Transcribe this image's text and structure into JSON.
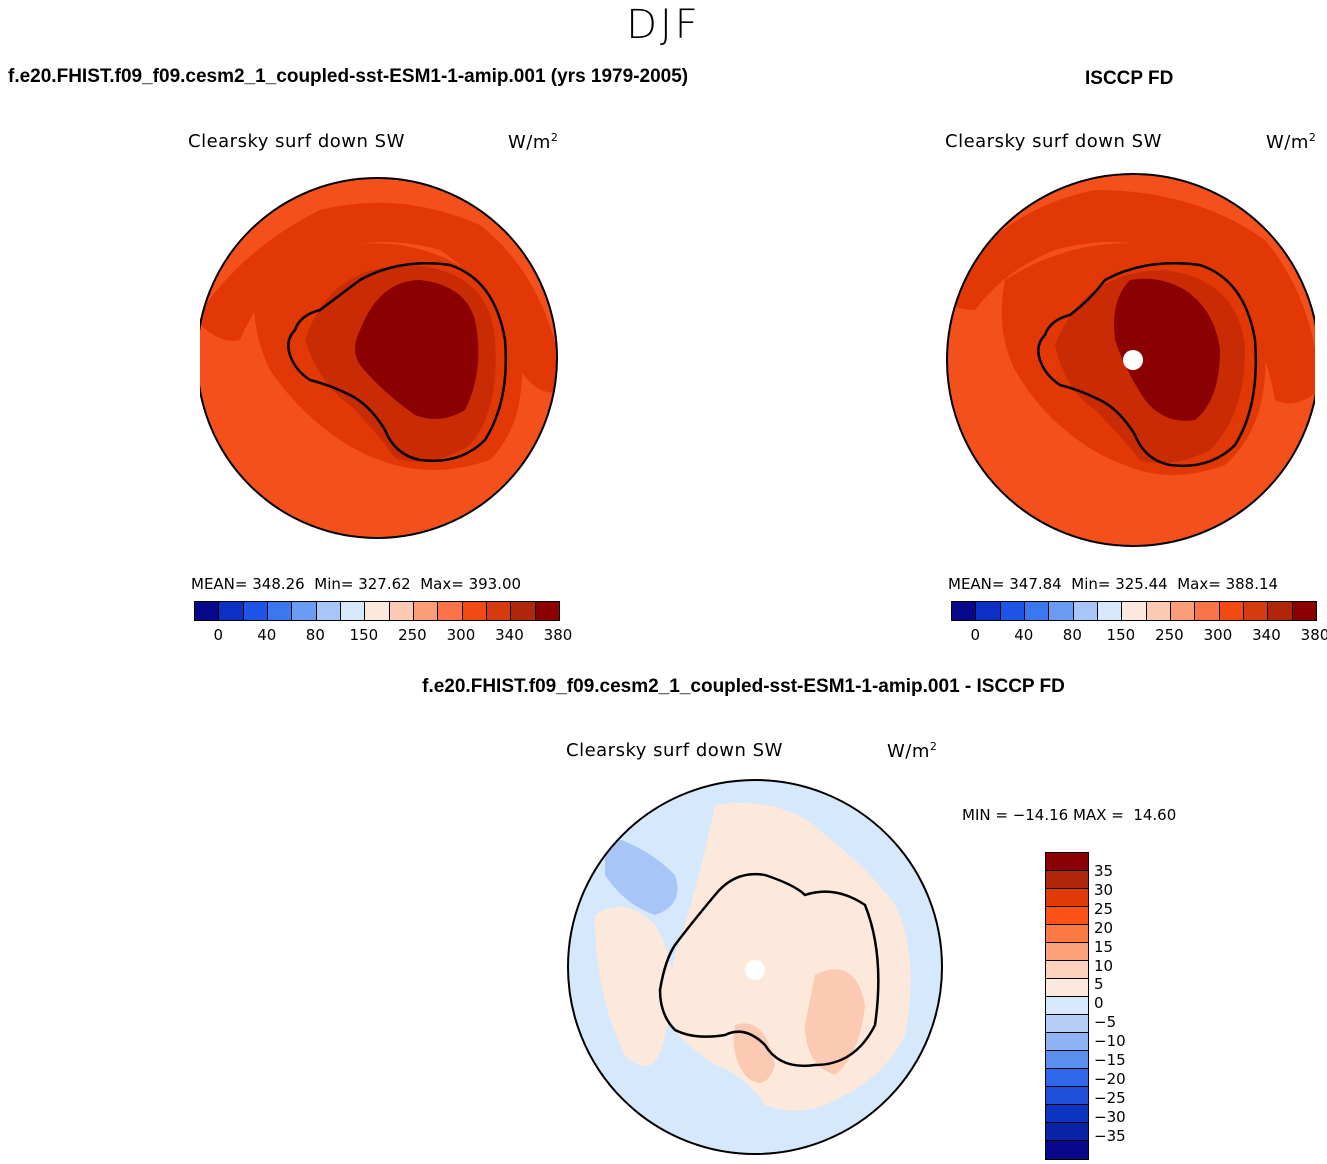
{
  "figure": {
    "season": "DJF",
    "left_panel_title": "f.e20.FHIST.f09_f09.cesm2_1_coupled-sst-ESM1-1-amip.001 (yrs 1979-2005)",
    "right_panel_title": "ISCCP FD",
    "diff_panel_title": "f.e20.FHIST.f09_f09.cesm2_1_coupled-sst-ESM1-1-amip.001 - ISCCP FD"
  },
  "panels": {
    "model": {
      "variable": "Clearsky surf down SW",
      "units": "W/m",
      "units_sup": "2",
      "stats": "MEAN= 348.26  Min= 327.62  Max= 393.00"
    },
    "obs": {
      "variable": "Clearsky surf down SW",
      "units": "W/m",
      "units_sup": "2",
      "stats": "MEAN= 347.84  Min= 325.44  Max= 388.14"
    },
    "diff": {
      "variable": "Clearsky surf down SW",
      "units": "W/m",
      "units_sup": "2",
      "stats": "MIN = −14.16 MAX =  14.60"
    }
  },
  "colors": {
    "main_scale": [
      "#08088a",
      "#0c2fc4",
      "#1d55e8",
      "#3a78f0",
      "#6a9cf5",
      "#a8c5f8",
      "#d6e8fc",
      "#fde9dc",
      "#fccab3",
      "#fb9e78",
      "#f97447",
      "#f14a12",
      "#d53b0c",
      "#b02608",
      "#8b0000"
    ],
    "diff_scale": [
      "#8b0000",
      "#b02608",
      "#e13a06",
      "#fd5318",
      "#fc7a45",
      "#fca27a",
      "#fdd2bc",
      "#fde9dc",
      "#d6e8fc",
      "#b5cdf7",
      "#8fb4f4",
      "#5a8ff0",
      "#2e68e8",
      "#1d4fd8",
      "#0c36c2",
      "#0a24a8",
      "#08088a"
    ],
    "fill_main_outer": "#f4501b",
    "fill_main_ring": "#e13806",
    "fill_main_coast": "#c92c05",
    "fill_main_interior": "#8b0000",
    "fill_diff_ocean": "#d6e8fc",
    "fill_diff_warm": "#fde9dc",
    "fill_diff_pos": "#fccab3",
    "fill_diff_neg": "#a8c5f8"
  },
  "colorbars": {
    "main_ticks": [
      "0",
      "40",
      "80",
      "150",
      "250",
      "300",
      "340",
      "380"
    ],
    "diff_labels": [
      "35",
      "30",
      "25",
      "20",
      "15",
      "10",
      "5",
      "0",
      "−5",
      "−10",
      "−15",
      "−20",
      "−25",
      "−30",
      "−35"
    ]
  }
}
